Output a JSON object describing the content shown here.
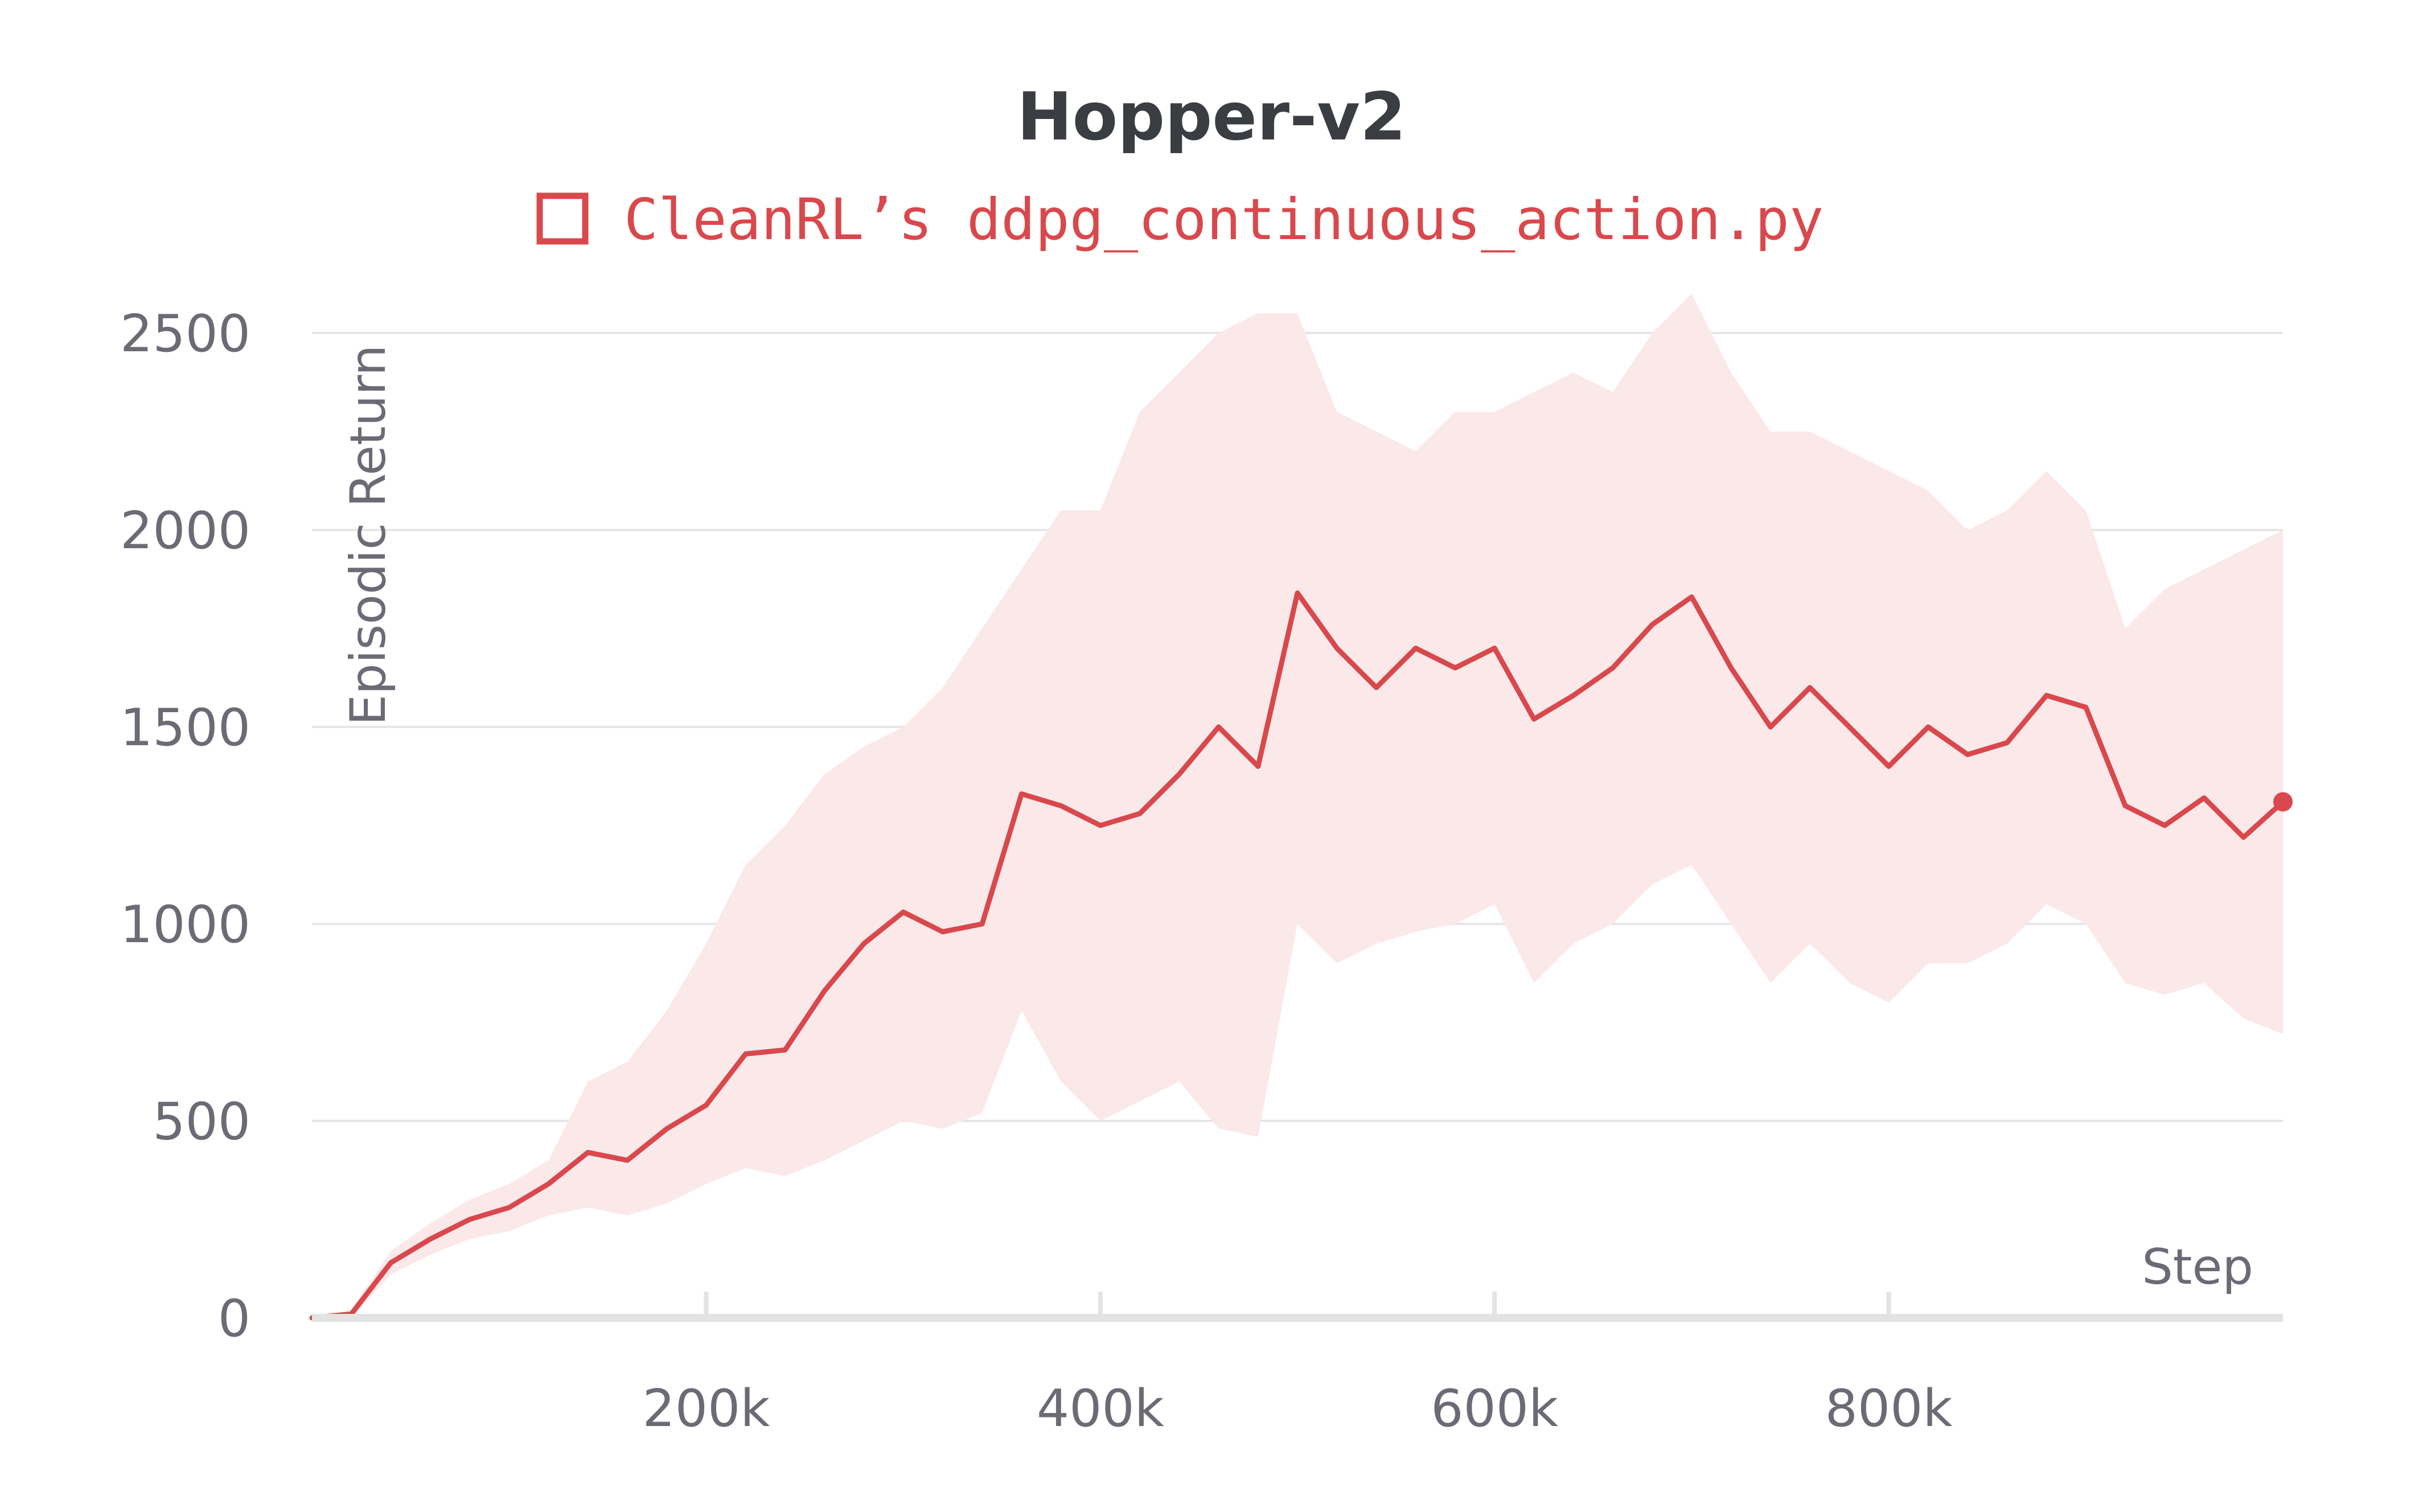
{
  "chart_data": {
    "type": "line",
    "title": "Hopper-v2",
    "xlabel": "Step",
    "ylabel": "Episodic Return",
    "xlim": [
      0,
      1000000
    ],
    "ylim": [
      0,
      2500
    ],
    "x_ticks": [
      200000,
      400000,
      600000,
      800000
    ],
    "x_tick_labels": [
      "200k",
      "400k",
      "600k",
      "800k"
    ],
    "y_ticks": [
      0,
      500,
      1000,
      1500,
      2000,
      2500
    ],
    "y_tick_labels": [
      "0",
      "500",
      "1000",
      "1500",
      "2000",
      "2500"
    ],
    "grid": true,
    "legend_position": "top-center",
    "colors": {
      "line": "#d9484c",
      "band": "#fbe9ea",
      "grid": "#e6e6e6",
      "axis": "#e3e3e3"
    },
    "series": [
      {
        "name": "CleanRL’s ddpg_continuous_action.py",
        "x": [
          0,
          20000,
          40000,
          60000,
          80000,
          100000,
          120000,
          140000,
          160000,
          180000,
          200000,
          220000,
          240000,
          260000,
          280000,
          300000,
          320000,
          340000,
          360000,
          380000,
          400000,
          420000,
          440000,
          460000,
          480000,
          500000,
          520000,
          540000,
          560000,
          580000,
          600000,
          620000,
          640000,
          660000,
          680000,
          700000,
          720000,
          740000,
          760000,
          780000,
          800000,
          820000,
          840000,
          860000,
          880000,
          900000,
          920000,
          940000,
          960000,
          980000,
          1000000
        ],
        "values": [
          0,
          10,
          140,
          200,
          250,
          280,
          340,
          420,
          400,
          480,
          540,
          670,
          680,
          830,
          950,
          1030,
          980,
          1000,
          1330,
          1300,
          1250,
          1280,
          1380,
          1500,
          1400,
          1840,
          1700,
          1600,
          1700,
          1650,
          1700,
          1520,
          1580,
          1650,
          1760,
          1830,
          1650,
          1500,
          1600,
          1500,
          1400,
          1500,
          1430,
          1460,
          1580,
          1550,
          1300,
          1250,
          1320,
          1220,
          1310
        ],
        "upper": [
          0,
          20,
          170,
          240,
          300,
          340,
          400,
          600,
          650,
          780,
          950,
          1150,
          1250,
          1380,
          1450,
          1500,
          1600,
          1750,
          1900,
          2050,
          2050,
          2300,
          2400,
          2500,
          2550,
          2550,
          2300,
          2250,
          2200,
          2300,
          2300,
          2350,
          2400,
          2350,
          2500,
          2600,
          2400,
          2250,
          2250,
          2200,
          2150,
          2100,
          2000,
          2050,
          2150,
          2050,
          1750,
          1850,
          1900,
          1950,
          2000
        ],
        "lower": [
          0,
          0,
          110,
          160,
          200,
          220,
          260,
          280,
          260,
          290,
          340,
          380,
          360,
          400,
          450,
          500,
          480,
          520,
          780,
          600,
          500,
          550,
          600,
          480,
          460,
          1000,
          900,
          950,
          980,
          1000,
          1050,
          850,
          950,
          1000,
          1100,
          1150,
          1000,
          850,
          950,
          850,
          800,
          900,
          900,
          950,
          1050,
          1000,
          850,
          820,
          850,
          760,
          720
        ],
        "end_marker": 1310
      }
    ]
  }
}
